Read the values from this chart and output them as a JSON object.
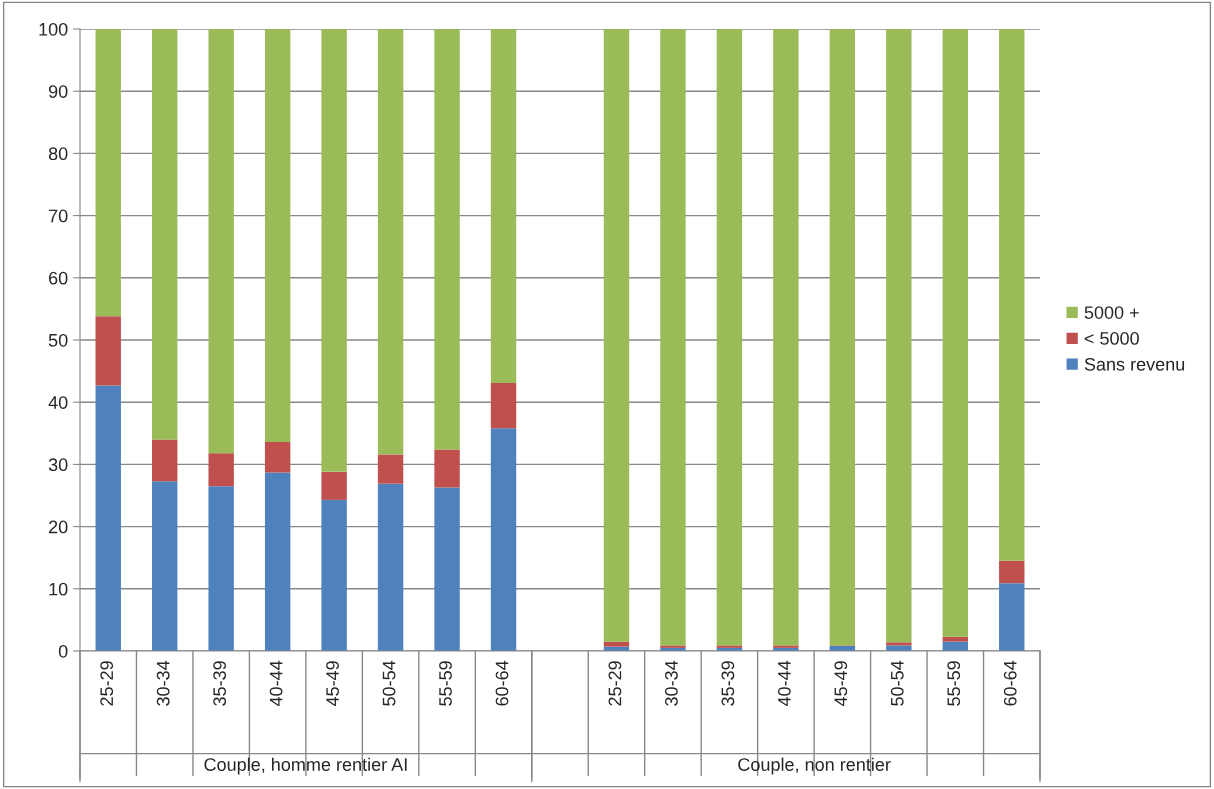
{
  "chart_data": {
    "type": "bar",
    "stacked": true,
    "categories": [
      "25-29",
      "30-34",
      "35-39",
      "40-44",
      "45-49",
      "50-54",
      "55-59",
      "60-64",
      null,
      "25-29",
      "30-34",
      "35-39",
      "40-44",
      "45-49",
      "50-54",
      "55-59",
      "60-64"
    ],
    "series": [
      {
        "name": "Sans revenu",
        "color": "#4f81bd",
        "values": [
          42.7,
          27.3,
          26.5,
          28.7,
          24.3,
          26.9,
          26.3,
          35.8,
          null,
          0.7,
          0.5,
          0.5,
          0.5,
          0.8,
          0.9,
          1.5,
          10.9
        ]
      },
      {
        "name": "< 5000",
        "color": "#c0504d",
        "values": [
          11.1,
          6.7,
          5.3,
          4.9,
          4.5,
          4.7,
          6.1,
          7.3,
          null,
          0.8,
          0.4,
          0.4,
          0.4,
          0.1,
          0.5,
          0.8,
          3.6
        ]
      },
      {
        "name": "5000 +",
        "color": "#9bbb59",
        "values": [
          46.2,
          66.0,
          68.2,
          66.4,
          71.2,
          68.4,
          67.6,
          56.9,
          null,
          98.5,
          99.1,
          99.1,
          99.1,
          99.1,
          98.6,
          97.7,
          85.5
        ]
      }
    ],
    "ylim": [
      0,
      100
    ],
    "yticks": [
      0,
      10,
      20,
      30,
      40,
      50,
      60,
      70,
      80,
      90,
      100
    ],
    "grid": "y",
    "legend": "right",
    "annotations": [
      "Couple, homme rentier AI",
      "Couple, non rentier"
    ]
  }
}
